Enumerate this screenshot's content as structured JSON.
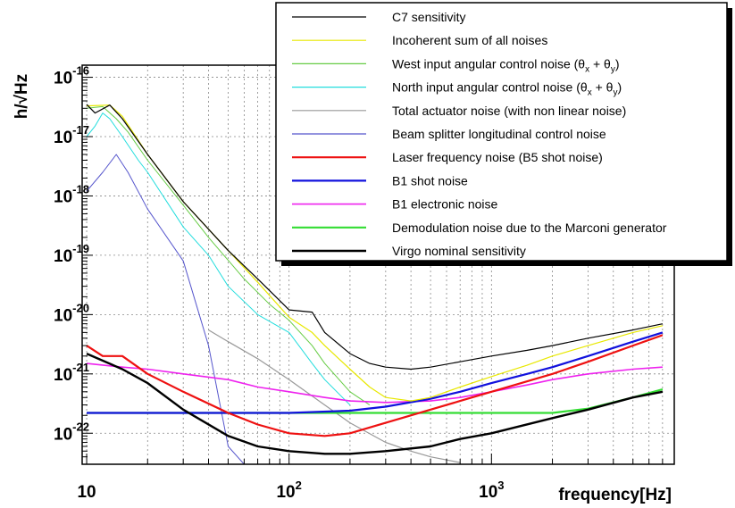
{
  "chart_data": {
    "type": "line",
    "title": "",
    "xlabel": "frequency[Hz]",
    "ylabel": "h/√Hz",
    "x_scale": "log",
    "y_scale": "log",
    "xlim": [
      9.5,
      8000
    ],
    "ylim": [
      3e-23,
      1.6e-16
    ],
    "grid": true,
    "legend_placement": "top-right",
    "x_ticks": [
      {
        "value": 10,
        "label": "10"
      },
      {
        "value": 100,
        "label": "10",
        "exp": "2"
      },
      {
        "value": 1000,
        "label": "10",
        "exp": "3"
      }
    ],
    "y_ticks": [
      {
        "value": 1e-22,
        "label": "10",
        "exp": "-22"
      },
      {
        "value": 1e-21,
        "label": "10",
        "exp": "-21"
      },
      {
        "value": 1e-20,
        "label": "10",
        "exp": "-20"
      },
      {
        "value": 1e-19,
        "label": "10",
        "exp": "-19"
      },
      {
        "value": 1e-18,
        "label": "10",
        "exp": "-18"
      },
      {
        "value": 1e-17,
        "label": "10",
        "exp": "-17"
      },
      {
        "value": 1e-16,
        "label": "10",
        "exp": "-16"
      }
    ],
    "series": [
      {
        "name": "C7 sensitivity",
        "color": "#000000",
        "width": 1.2,
        "x": [
          10,
          11,
          13,
          15,
          20,
          30,
          50,
          70,
          100,
          130,
          150,
          200,
          250,
          300,
          400,
          500,
          700,
          1000,
          1500,
          2000,
          3000,
          5000,
          7000
        ],
        "y": [
          3.5e-17,
          2.5e-17,
          3.4e-17,
          2e-17,
          5e-18,
          8e-19,
          1.2e-19,
          4e-20,
          1.2e-20,
          1.1e-20,
          5e-21,
          2.2e-21,
          1.5e-21,
          1.3e-21,
          1.2e-21,
          1.3e-21,
          1.6e-21,
          2e-21,
          2.5e-21,
          3e-21,
          4e-21,
          5.5e-21,
          7e-21
        ]
      },
      {
        "name": "Incoherent sum of all noises",
        "color": "#e8e800",
        "width": 1.2,
        "x": [
          10,
          13,
          15,
          20,
          30,
          50,
          70,
          100,
          130,
          150,
          200,
          250,
          300,
          400,
          500,
          700,
          1000,
          1500,
          2000,
          3000,
          5000,
          7000
        ],
        "y": [
          3.3e-17,
          3.4e-17,
          2.2e-17,
          5e-18,
          8e-19,
          1.2e-19,
          3.5e-20,
          9e-21,
          5e-21,
          3e-21,
          1.2e-21,
          6e-22,
          4e-22,
          3.5e-22,
          4e-22,
          6e-22,
          9e-22,
          1.4e-21,
          2e-21,
          3e-21,
          5e-21,
          6.5e-21
        ]
      },
      {
        "name": "West input angular control noise (θx + θy)",
        "label_parts": [
          "West input angular control noise (θ",
          "x",
          " + θ",
          "y",
          ")"
        ],
        "color": "#66cc44",
        "width": 1.0,
        "x": [
          10,
          12,
          14,
          16,
          20,
          30,
          40,
          60,
          80,
          100,
          130,
          150,
          200,
          250
        ],
        "y": [
          3e-17,
          3.2e-17,
          2e-17,
          1.2e-17,
          4e-18,
          7e-19,
          2e-19,
          4e-20,
          1.5e-20,
          8e-21,
          3e-21,
          1.5e-21,
          5e-22,
          3e-22
        ]
      },
      {
        "name": "North input angular control noise (θx + θy)",
        "label_parts": [
          "North input angular control noise (θ",
          "x",
          " + θ",
          "y",
          ")"
        ],
        "color": "#22dddd",
        "width": 1.0,
        "x": [
          10,
          11,
          12,
          13,
          15,
          18,
          20,
          30,
          40,
          50,
          70,
          100,
          130,
          150,
          200
        ],
        "y": [
          1e-17,
          1.5e-17,
          2.5e-17,
          2e-17,
          1e-17,
          4e-18,
          2.5e-18,
          3e-19,
          1e-19,
          3e-20,
          1e-20,
          5e-21,
          1.5e-21,
          8e-22,
          3e-22
        ]
      },
      {
        "name": "Total actuator noise (with non linear noise)",
        "color": "#999999",
        "width": 1.2,
        "x": [
          40,
          50,
          70,
          100,
          150,
          200,
          300,
          400,
          500,
          700
        ],
        "y": [
          5.5e-21,
          3.5e-21,
          1.8e-21,
          8e-22,
          3e-22,
          1.5e-22,
          7e-23,
          5e-23,
          4e-23,
          3.2e-23
        ]
      },
      {
        "name": "Beam splitter longitudinal control noise",
        "color": "#5555cc",
        "width": 1.0,
        "x": [
          10,
          12,
          14,
          16,
          20,
          30,
          40,
          50,
          60,
          70
        ],
        "y": [
          1.2e-18,
          2.5e-18,
          5e-18,
          2.5e-18,
          6e-19,
          8e-20,
          3e-21,
          6e-23,
          3e-23,
          3e-23
        ]
      },
      {
        "name": "Laser frequency noise (B5 shot noise)",
        "color": "#ee1111",
        "width": 2.2,
        "x": [
          10,
          12,
          15,
          20,
          30,
          50,
          70,
          100,
          150,
          200,
          300,
          500,
          700,
          1000,
          2000,
          3000,
          5000,
          7000
        ],
        "y": [
          3e-21,
          2e-21,
          2e-21,
          1e-21,
          5e-22,
          2.2e-22,
          1.4e-22,
          1e-22,
          9e-23,
          1e-22,
          1.5e-22,
          2.5e-22,
          3.5e-22,
          5e-22,
          1e-21,
          1.6e-21,
          3e-21,
          4.5e-21
        ]
      },
      {
        "name": "B1 shot noise",
        "color": "#1111dd",
        "width": 2.2,
        "x": [
          10,
          100,
          200,
          300,
          500,
          700,
          1000,
          1500,
          2000,
          3000,
          5000,
          7000
        ],
        "y": [
          2.2e-22,
          2.2e-22,
          2.4e-22,
          2.8e-22,
          3.8e-22,
          5e-22,
          7e-22,
          1e-21,
          1.3e-21,
          2e-21,
          3.5e-21,
          5e-21
        ]
      },
      {
        "name": "B1 electronic noise",
        "color": "#ee22ee",
        "width": 1.6,
        "x": [
          10,
          15,
          20,
          30,
          50,
          70,
          100,
          150,
          200,
          300,
          500,
          700,
          1000,
          1500,
          2000,
          3000,
          5000,
          7000
        ],
        "y": [
          1.5e-21,
          1.3e-21,
          1.2e-21,
          1e-21,
          8e-22,
          6e-22,
          5e-22,
          4e-22,
          3.5e-22,
          3.3e-22,
          3.5e-22,
          4e-22,
          5e-22,
          6.5e-22,
          8e-22,
          1e-21,
          1.2e-21,
          1.3e-21
        ]
      },
      {
        "name": "Demodulation noise due to the Marconi generator",
        "color": "#33dd33",
        "width": 2.2,
        "x": [
          10,
          500,
          1000,
          2000,
          3000,
          5000,
          7000
        ],
        "y": [
          2.2e-22,
          2.2e-22,
          2.2e-22,
          2.2e-22,
          2.6e-22,
          4e-22,
          5.5e-22
        ]
      },
      {
        "name": "Virgo nominal sensitivity",
        "color": "#000000",
        "width": 2.4,
        "x": [
          10,
          15,
          20,
          30,
          50,
          70,
          100,
          150,
          200,
          300,
          500,
          700,
          1000,
          2000,
          3000,
          5000,
          7000
        ],
        "y": [
          2.2e-21,
          1.2e-21,
          7e-22,
          2.5e-22,
          9e-23,
          6e-23,
          5e-23,
          4.5e-23,
          4.5e-23,
          5e-23,
          6e-23,
          8e-23,
          1e-22,
          1.8e-22,
          2.5e-22,
          4e-22,
          5e-22
        ]
      }
    ]
  }
}
